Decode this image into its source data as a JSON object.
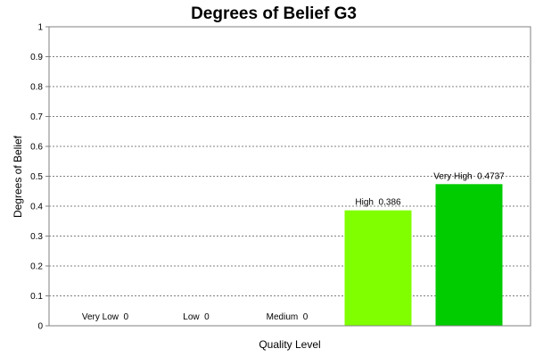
{
  "chart_data": {
    "type": "bar",
    "title": "Degrees of Belief G3",
    "xlabel": "Quality Level",
    "ylabel": "Degrees of Belief",
    "ylim": [
      0,
      1
    ],
    "yticks": [
      "0",
      "0.1",
      "0.2",
      "0.3",
      "0.4",
      "0.5",
      "0.6",
      "0.7",
      "0.8",
      "0.9",
      "1"
    ],
    "grid": true,
    "categories": [
      "Very Low",
      "Low",
      "Medium",
      "High",
      "Very High"
    ],
    "values": [
      0,
      0,
      0,
      0.386,
      0.4737
    ],
    "data_labels": [
      "Very Low  0",
      "Low  0",
      "Medium  0",
      "High  0.386",
      "Very High  0.4737"
    ],
    "colors": [
      "#00cc00",
      "#00cc00",
      "#00cc00",
      "#80ff00",
      "#00cc00"
    ]
  }
}
